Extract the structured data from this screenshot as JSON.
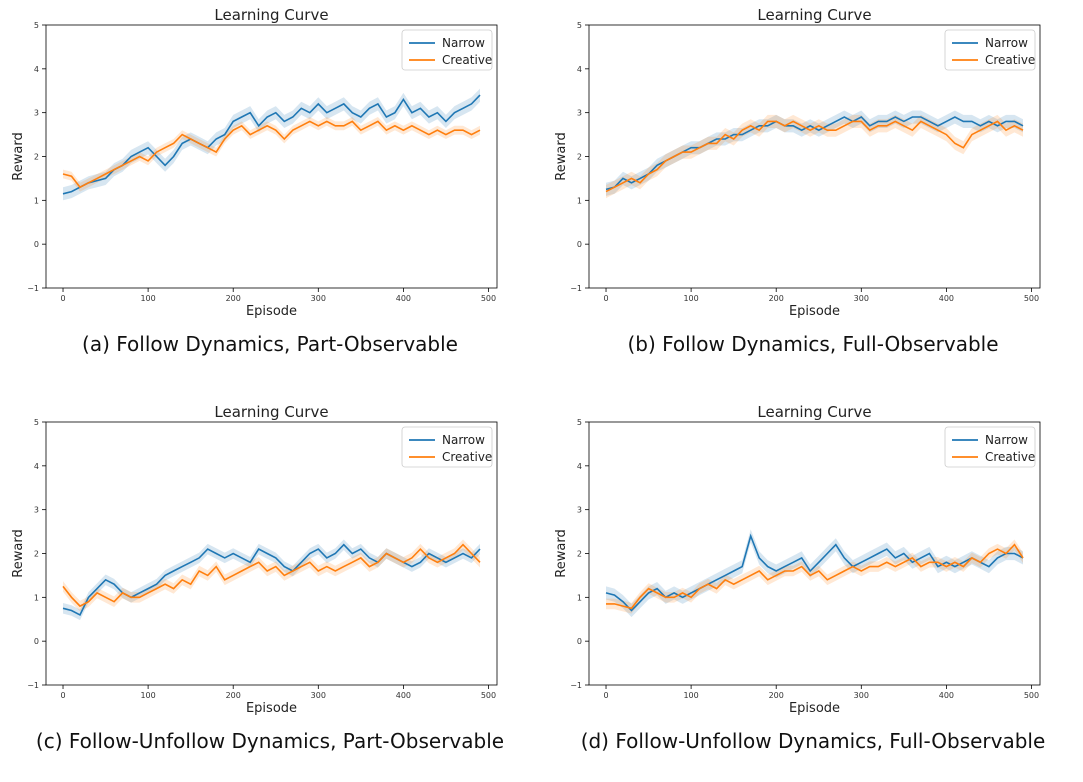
{
  "colors": {
    "series_a": "#1f77b4",
    "series_b": "#ff7f0e"
  },
  "chart_data": [
    {
      "type": "line",
      "title": "Learning Curve",
      "xlabel": "Episode",
      "ylabel": "Reward",
      "caption": "(a) Follow Dynamics, Part-Observable",
      "xlim": [
        -20,
        510
      ],
      "ylim": [
        -1,
        5
      ],
      "xticks": [
        0,
        100,
        200,
        300,
        400,
        500
      ],
      "yticks": [
        -1,
        0,
        1,
        2,
        3,
        4,
        5
      ],
      "legend": "top-right",
      "x": [
        0,
        10,
        20,
        30,
        40,
        50,
        60,
        70,
        80,
        90,
        100,
        110,
        120,
        130,
        140,
        150,
        160,
        170,
        180,
        190,
        200,
        210,
        220,
        230,
        240,
        250,
        260,
        270,
        280,
        290,
        300,
        310,
        320,
        330,
        340,
        350,
        360,
        370,
        380,
        390,
        400,
        410,
        420,
        430,
        440,
        450,
        460,
        470,
        480,
        490
      ],
      "series": [
        {
          "name": "Narrow",
          "color": "#1f77b4",
          "values": [
            1.15,
            1.2,
            1.3,
            1.4,
            1.45,
            1.5,
            1.7,
            1.8,
            2.0,
            2.1,
            2.2,
            2.0,
            1.8,
            2.0,
            2.3,
            2.4,
            2.3,
            2.2,
            2.4,
            2.5,
            2.8,
            2.9,
            3.0,
            2.7,
            2.9,
            3.0,
            2.8,
            2.9,
            3.1,
            3.0,
            3.2,
            3.0,
            3.1,
            3.2,
            3.0,
            2.9,
            3.1,
            3.2,
            2.9,
            3.0,
            3.3,
            3.0,
            3.1,
            2.9,
            3.0,
            2.8,
            3.0,
            3.1,
            3.2,
            3.4
          ],
          "band": 0.15
        },
        {
          "name": "Creative",
          "color": "#ff7f0e",
          "values": [
            1.6,
            1.55,
            1.3,
            1.4,
            1.5,
            1.6,
            1.7,
            1.8,
            1.9,
            2.0,
            1.9,
            2.1,
            2.2,
            2.3,
            2.5,
            2.4,
            2.3,
            2.2,
            2.1,
            2.4,
            2.6,
            2.7,
            2.5,
            2.6,
            2.7,
            2.6,
            2.4,
            2.6,
            2.7,
            2.8,
            2.7,
            2.8,
            2.7,
            2.7,
            2.8,
            2.6,
            2.7,
            2.8,
            2.6,
            2.7,
            2.6,
            2.7,
            2.6,
            2.5,
            2.6,
            2.5,
            2.6,
            2.6,
            2.5,
            2.6
          ],
          "band": 0.1
        }
      ]
    },
    {
      "type": "line",
      "title": "Learning Curve",
      "xlabel": "Episode",
      "ylabel": "Reward",
      "caption": "(b) Follow Dynamics, Full-Observable",
      "xlim": [
        -20,
        510
      ],
      "ylim": [
        -1,
        5
      ],
      "xticks": [
        0,
        100,
        200,
        300,
        400,
        500
      ],
      "yticks": [
        -1,
        0,
        1,
        2,
        3,
        4,
        5
      ],
      "legend": "top-right",
      "x": [
        0,
        10,
        20,
        30,
        40,
        50,
        60,
        70,
        80,
        90,
        100,
        110,
        120,
        130,
        140,
        150,
        160,
        170,
        180,
        190,
        200,
        210,
        220,
        230,
        240,
        250,
        260,
        270,
        280,
        290,
        300,
        310,
        320,
        330,
        340,
        350,
        360,
        370,
        380,
        390,
        400,
        410,
        420,
        430,
        440,
        450,
        460,
        470,
        480,
        490
      ],
      "series": [
        {
          "name": "Narrow",
          "color": "#1f77b4",
          "values": [
            1.25,
            1.3,
            1.5,
            1.4,
            1.5,
            1.6,
            1.8,
            1.9,
            2.0,
            2.1,
            2.2,
            2.2,
            2.3,
            2.4,
            2.4,
            2.5,
            2.5,
            2.6,
            2.7,
            2.7,
            2.8,
            2.7,
            2.7,
            2.6,
            2.7,
            2.6,
            2.7,
            2.8,
            2.9,
            2.8,
            2.9,
            2.7,
            2.8,
            2.8,
            2.9,
            2.8,
            2.9,
            2.9,
            2.8,
            2.7,
            2.8,
            2.9,
            2.8,
            2.8,
            2.7,
            2.8,
            2.7,
            2.8,
            2.8,
            2.7
          ],
          "band": 0.15
        },
        {
          "name": "Creative",
          "color": "#ff7f0e",
          "values": [
            1.2,
            1.3,
            1.4,
            1.5,
            1.4,
            1.6,
            1.7,
            1.9,
            2.0,
            2.1,
            2.1,
            2.2,
            2.3,
            2.3,
            2.5,
            2.4,
            2.6,
            2.7,
            2.6,
            2.8,
            2.8,
            2.7,
            2.8,
            2.7,
            2.6,
            2.7,
            2.6,
            2.6,
            2.7,
            2.8,
            2.8,
            2.6,
            2.7,
            2.7,
            2.8,
            2.7,
            2.6,
            2.8,
            2.7,
            2.6,
            2.5,
            2.3,
            2.2,
            2.5,
            2.6,
            2.7,
            2.8,
            2.6,
            2.7,
            2.6
          ],
          "band": 0.15
        }
      ]
    },
    {
      "type": "line",
      "title": "Learning Curve",
      "xlabel": "Episode",
      "ylabel": "Reward",
      "caption": "(c) Follow-Unfollow Dynamics, Part-Observable",
      "xlim": [
        -20,
        510
      ],
      "ylim": [
        -1,
        5
      ],
      "xticks": [
        0,
        100,
        200,
        300,
        400,
        500
      ],
      "yticks": [
        -1,
        0,
        1,
        2,
        3,
        4,
        5
      ],
      "legend": "top-right",
      "x": [
        0,
        10,
        20,
        30,
        40,
        50,
        60,
        70,
        80,
        90,
        100,
        110,
        120,
        130,
        140,
        150,
        160,
        170,
        180,
        190,
        200,
        210,
        220,
        230,
        240,
        250,
        260,
        270,
        280,
        290,
        300,
        310,
        320,
        330,
        340,
        350,
        360,
        370,
        380,
        390,
        400,
        410,
        420,
        430,
        440,
        450,
        460,
        470,
        480,
        490
      ],
      "series": [
        {
          "name": "Narrow",
          "color": "#1f77b4",
          "values": [
            0.75,
            0.7,
            0.6,
            1.0,
            1.2,
            1.4,
            1.3,
            1.1,
            1.0,
            1.1,
            1.2,
            1.3,
            1.5,
            1.6,
            1.7,
            1.8,
            1.9,
            2.1,
            2.0,
            1.9,
            2.0,
            1.9,
            1.8,
            2.1,
            2.0,
            1.9,
            1.7,
            1.6,
            1.8,
            2.0,
            2.1,
            1.9,
            2.0,
            2.2,
            2.0,
            2.1,
            1.9,
            1.8,
            2.0,
            1.9,
            1.8,
            1.7,
            1.8,
            2.0,
            1.9,
            1.8,
            1.9,
            2.0,
            1.9,
            2.1
          ],
          "band": 0.12
        },
        {
          "name": "Creative",
          "color": "#ff7f0e",
          "values": [
            1.25,
            1.0,
            0.8,
            0.9,
            1.1,
            1.0,
            0.9,
            1.1,
            1.0,
            1.0,
            1.1,
            1.2,
            1.3,
            1.2,
            1.4,
            1.3,
            1.6,
            1.5,
            1.7,
            1.4,
            1.5,
            1.6,
            1.7,
            1.8,
            1.6,
            1.7,
            1.5,
            1.6,
            1.7,
            1.8,
            1.6,
            1.7,
            1.6,
            1.7,
            1.8,
            1.9,
            1.7,
            1.8,
            2.0,
            1.9,
            1.8,
            1.9,
            2.1,
            1.9,
            1.8,
            1.9,
            2.0,
            2.2,
            2.0,
            1.8
          ],
          "band": 0.12
        }
      ]
    },
    {
      "type": "line",
      "title": "Learning Curve",
      "xlabel": "Episode",
      "ylabel": "Reward",
      "caption": "(d) Follow-Unfollow Dynamics, Full-Observable",
      "xlim": [
        -20,
        510
      ],
      "ylim": [
        -1,
        5
      ],
      "xticks": [
        0,
        100,
        200,
        300,
        400,
        500
      ],
      "yticks": [
        -1,
        0,
        1,
        2,
        3,
        4,
        5
      ],
      "legend": "top-right",
      "x": [
        0,
        10,
        20,
        30,
        40,
        50,
        60,
        70,
        80,
        90,
        100,
        110,
        120,
        130,
        140,
        150,
        160,
        170,
        180,
        190,
        200,
        210,
        220,
        230,
        240,
        250,
        260,
        270,
        280,
        290,
        300,
        310,
        320,
        330,
        340,
        350,
        360,
        370,
        380,
        390,
        400,
        410,
        420,
        430,
        440,
        450,
        460,
        470,
        480,
        490
      ],
      "series": [
        {
          "name": "Narrow",
          "color": "#1f77b4",
          "values": [
            1.1,
            1.05,
            0.9,
            0.7,
            0.9,
            1.1,
            1.2,
            1.0,
            1.1,
            1.0,
            1.1,
            1.2,
            1.3,
            1.4,
            1.5,
            1.6,
            1.7,
            2.4,
            1.9,
            1.7,
            1.6,
            1.7,
            1.8,
            1.9,
            1.6,
            1.8,
            2.0,
            2.2,
            1.9,
            1.7,
            1.8,
            1.9,
            2.0,
            2.1,
            1.9,
            2.0,
            1.8,
            1.9,
            2.0,
            1.7,
            1.8,
            1.7,
            1.8,
            1.9,
            1.8,
            1.7,
            1.9,
            2.0,
            2.0,
            1.9
          ],
          "band": 0.15
        },
        {
          "name": "Creative",
          "color": "#ff7f0e",
          "values": [
            0.85,
            0.85,
            0.8,
            0.75,
            1.0,
            1.2,
            1.1,
            1.0,
            1.0,
            1.1,
            1.0,
            1.2,
            1.3,
            1.2,
            1.4,
            1.3,
            1.4,
            1.5,
            1.6,
            1.4,
            1.5,
            1.6,
            1.6,
            1.7,
            1.5,
            1.6,
            1.4,
            1.5,
            1.6,
            1.7,
            1.6,
            1.7,
            1.7,
            1.8,
            1.7,
            1.8,
            1.9,
            1.7,
            1.8,
            1.8,
            1.7,
            1.8,
            1.7,
            1.9,
            1.8,
            2.0,
            2.1,
            2.0,
            2.2,
            1.9
          ],
          "band": 0.12
        }
      ]
    }
  ]
}
